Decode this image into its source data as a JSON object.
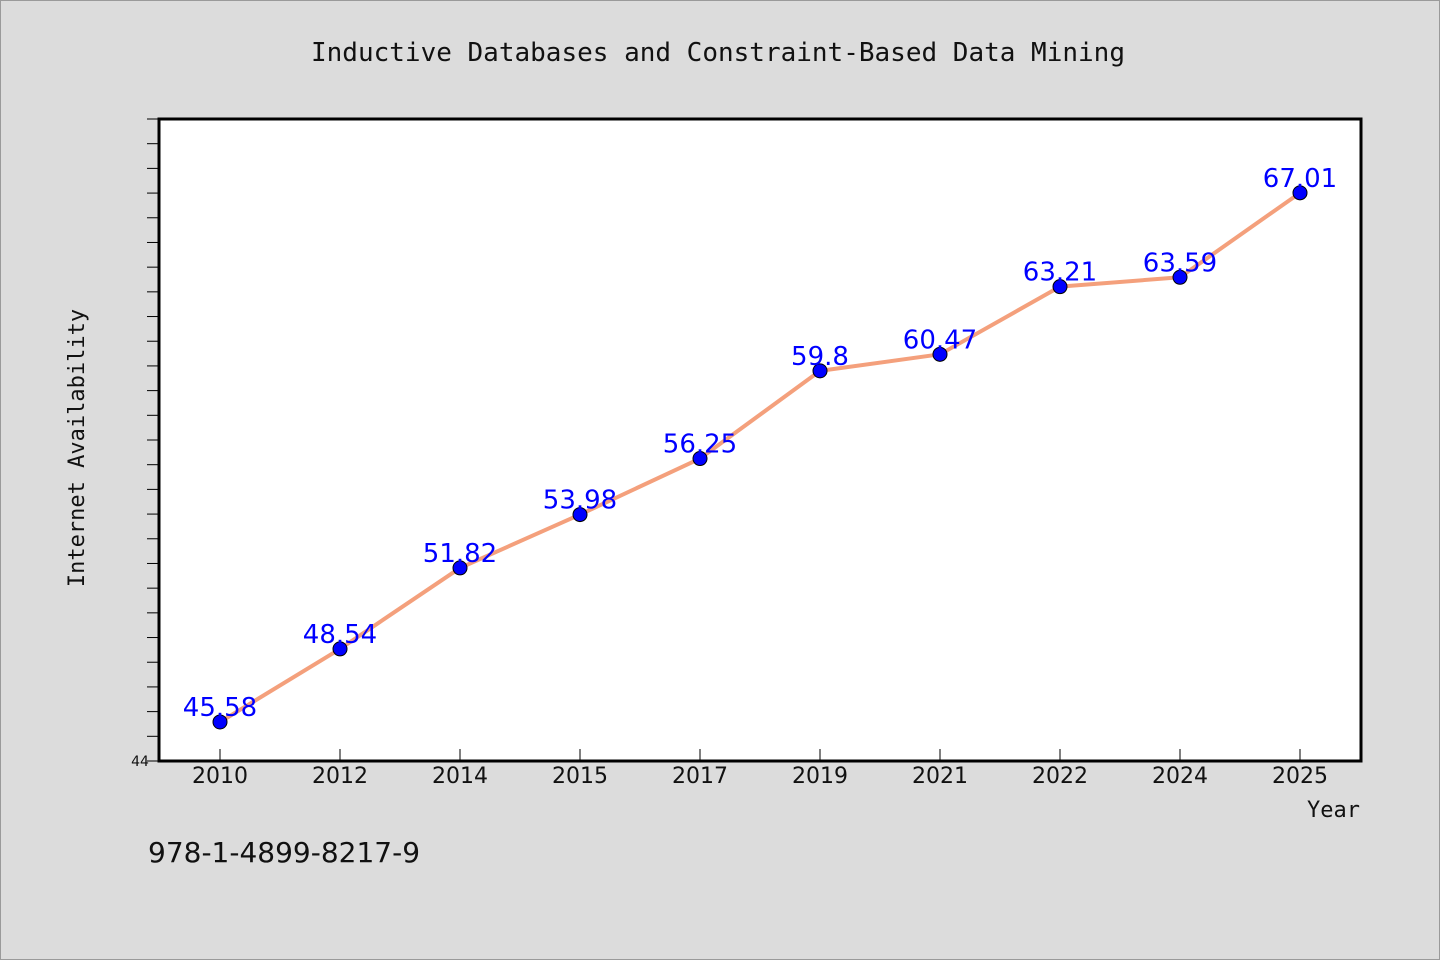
{
  "chart_data": {
    "type": "line",
    "title": "Inductive Databases and Constraint-Based Data Mining",
    "xlabel": "Year",
    "ylabel": "Internet Availability",
    "categories": [
      "2010",
      "2012",
      "2014",
      "2015",
      "2017",
      "2019",
      "2021",
      "2022",
      "2024",
      "2025"
    ],
    "series": [
      {
        "values": [
          45.58,
          48.54,
          51.82,
          53.98,
          56.25,
          59.8,
          60.47,
          63.21,
          63.59,
          67.01
        ],
        "labels": [
          "45.58",
          "48.54",
          "51.82",
          "53.98",
          "56.25",
          "59.8",
          "60.47",
          "63.21",
          "63.59",
          "67.01"
        ]
      }
    ],
    "ylim": [
      44,
      70
    ],
    "y_tick_labels": [
      "44"
    ],
    "grid": false,
    "line_color": "#f4a07c",
    "marker_color": "#0000ff",
    "label_color": "#0000ff"
  },
  "footer_text": "978-1-4899-8217-9"
}
